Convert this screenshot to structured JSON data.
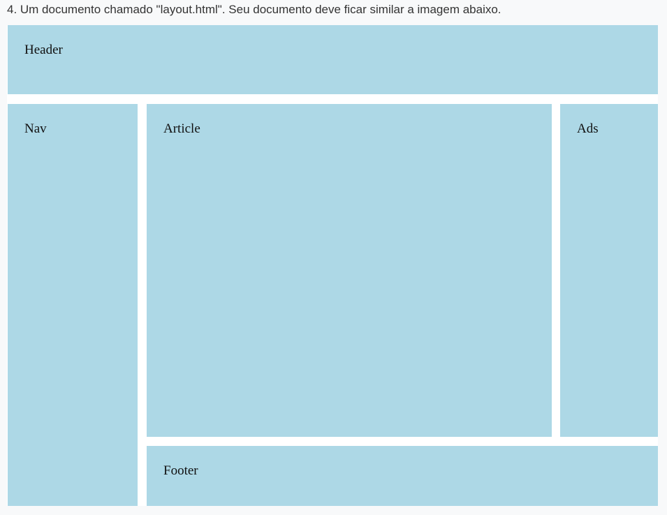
{
  "instruction": "4. Um documento chamado \"layout.html\". Seu documento deve ficar similar a imagem abaixo.",
  "layout": {
    "header_label": "Header",
    "nav_label": "Nav",
    "article_label": "Article",
    "ads_label": "Ads",
    "footer_label": "Footer"
  },
  "colors": {
    "box_fill": "#add8e6",
    "frame_background": "#ffffff",
    "page_background": "#f8f9fa"
  }
}
